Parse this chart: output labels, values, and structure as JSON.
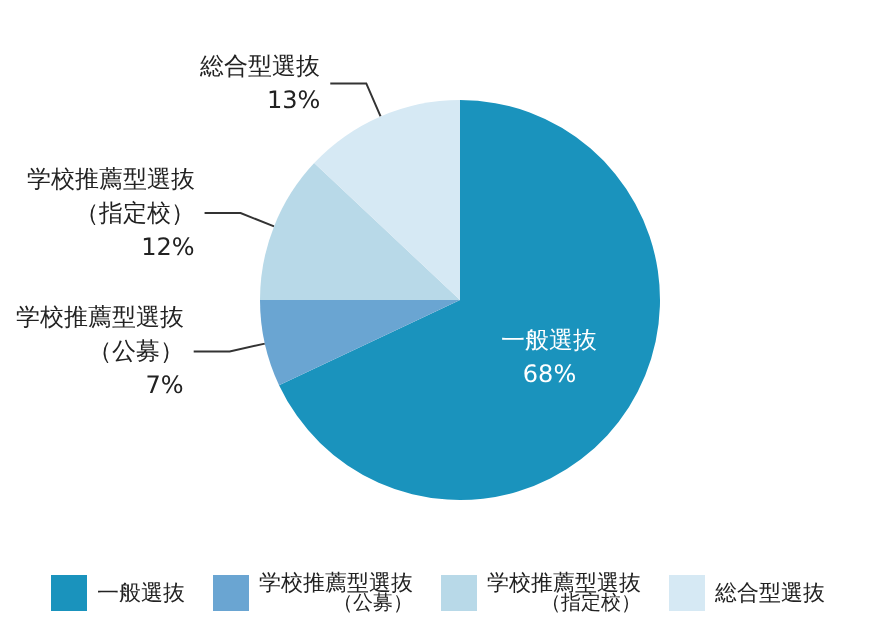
{
  "chart_data": {
    "type": "pie",
    "categories": [
      "一般選抜",
      "学校推薦型選抜（公募）",
      "学校推薦型選抜（指定校）",
      "総合型選抜"
    ],
    "values": [
      68,
      7,
      12,
      13
    ],
    "value_labels": [
      "68%",
      "7%",
      "12%",
      "13%"
    ],
    "colors": [
      "#1a93bd",
      "#6aa5d2",
      "#b8d9e8",
      "#d6e9f4"
    ],
    "legend": "bottom"
  }
}
